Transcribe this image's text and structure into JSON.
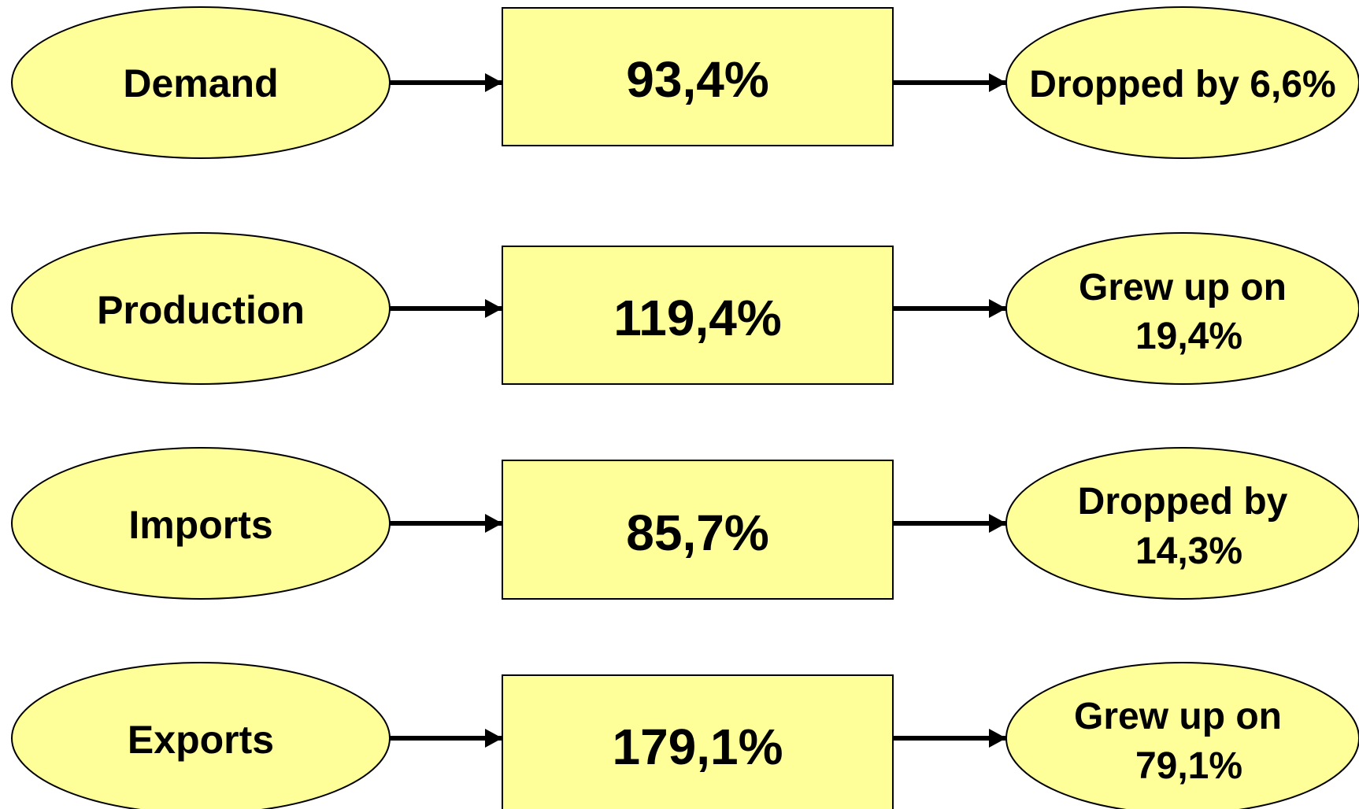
{
  "style": {
    "fill": "#ffff99",
    "stroke": "#000000"
  },
  "rows": [
    {
      "label": "Demand",
      "value": "93,4%",
      "result_lines": [
        "Dropped by 6,6%"
      ]
    },
    {
      "label": "Production",
      "value": "119,4%",
      "result_lines": [
        "Grew up on",
        "19,4%"
      ]
    },
    {
      "label": "Imports",
      "value": "85,7%",
      "result_lines": [
        "Dropped by",
        "14,3%"
      ]
    },
    {
      "label": "Exports",
      "value": "179,1%",
      "result_lines": [
        "Grew up on",
        "79,1%"
      ]
    }
  ]
}
